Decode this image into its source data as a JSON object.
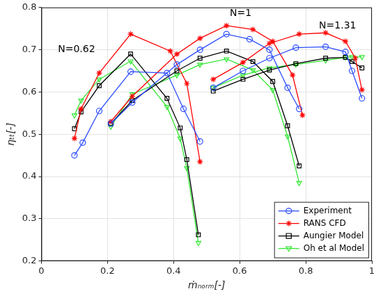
{
  "chart_data": {
    "type": "line",
    "xlabel": "ṁₙₒᵣₘ[-]",
    "ylabel": "ηₜₜ[-]",
    "xlim": [
      0,
      1
    ],
    "xticks": [
      0,
      0.2,
      0.4,
      0.6,
      0.8,
      1
    ],
    "ylim": [
      0.2,
      0.8
    ],
    "yticks": [
      0.2,
      0.3,
      0.4,
      0.5,
      0.6,
      0.7,
      0.8
    ],
    "grid": true,
    "legend": "lower right",
    "annotations": [
      {
        "text": "N=0.62",
        "x": 0.05,
        "y": 0.7
      },
      {
        "text": "N=1",
        "x": 0.57,
        "y": 0.786
      },
      {
        "text": "N=1.31",
        "x": 0.84,
        "y": 0.756
      }
    ],
    "series": [
      {
        "name": "Experiment",
        "color": "#2b4cff",
        "marker": "circle",
        "line_style": "solid",
        "x": [
          0.1,
          0.125,
          0.175,
          0.27,
          0.38,
          0.43,
          0.48,
          null,
          0.21,
          0.275,
          0.41,
          0.48,
          0.56,
          0.63,
          0.69,
          0.745,
          0.78,
          null,
          0.52,
          0.61,
          0.69,
          0.77,
          0.86,
          0.92,
          0.94,
          0.97
        ],
        "values": [
          0.45,
          0.48,
          0.555,
          0.648,
          0.645,
          0.56,
          0.483,
          null,
          0.525,
          0.575,
          0.665,
          0.7,
          0.737,
          0.725,
          0.7,
          0.61,
          0.56,
          null,
          0.61,
          0.65,
          0.68,
          0.705,
          0.707,
          0.695,
          0.65,
          0.585
        ]
      },
      {
        "name": "RANS CFD",
        "color": "#ff0000",
        "marker": "star",
        "line_style": "solid",
        "x": [
          0.1,
          0.12,
          0.175,
          0.27,
          0.39,
          0.44,
          0.48,
          null,
          0.21,
          0.275,
          0.41,
          0.48,
          0.56,
          0.64,
          0.7,
          0.76,
          0.79,
          null,
          0.52,
          0.61,
          0.69,
          0.78,
          0.86,
          0.92,
          0.95,
          0.97
        ],
        "values": [
          0.49,
          0.56,
          0.645,
          0.737,
          0.697,
          0.62,
          0.435,
          null,
          0.53,
          0.59,
          0.69,
          0.727,
          0.757,
          0.748,
          0.72,
          0.64,
          0.545,
          null,
          0.63,
          0.67,
          0.715,
          0.737,
          0.74,
          0.72,
          0.68,
          0.605
        ]
      },
      {
        "name": "Aungier Model",
        "color": "#000000",
        "marker": "square",
        "line_style": "solid",
        "x": [
          0.1,
          0.12,
          0.175,
          0.27,
          0.38,
          0.42,
          0.44,
          0.475,
          null,
          0.21,
          0.275,
          0.41,
          0.48,
          0.56,
          0.64,
          0.7,
          0.745,
          0.78,
          null,
          0.52,
          0.61,
          0.69,
          0.77,
          0.86,
          0.92,
          0.94,
          0.97
        ],
        "values": [
          0.513,
          0.553,
          0.615,
          0.69,
          0.585,
          0.515,
          0.44,
          0.262,
          null,
          0.525,
          0.58,
          0.65,
          0.68,
          0.697,
          0.672,
          0.625,
          0.52,
          0.425,
          null,
          0.602,
          0.63,
          0.652,
          0.667,
          0.68,
          0.682,
          0.672,
          0.657
        ]
      },
      {
        "name": "Oh et al Model",
        "color": "#33e633",
        "marker": "triangle-down",
        "line_style": "solid",
        "x": [
          0.1,
          0.12,
          0.175,
          0.27,
          0.38,
          0.42,
          0.44,
          0.475,
          null,
          0.21,
          0.275,
          0.41,
          0.48,
          0.56,
          0.64,
          0.7,
          0.745,
          0.78,
          null,
          0.52,
          0.61,
          0.69,
          0.77,
          0.86,
          0.92,
          0.94,
          0.97
        ],
        "values": [
          0.545,
          0.58,
          0.63,
          0.673,
          0.565,
          0.49,
          0.42,
          0.243,
          null,
          0.518,
          0.595,
          0.64,
          0.665,
          0.678,
          0.652,
          0.605,
          0.495,
          0.385,
          null,
          0.61,
          0.64,
          0.657,
          0.665,
          0.675,
          0.682,
          0.683,
          0.683
        ]
      }
    ]
  }
}
